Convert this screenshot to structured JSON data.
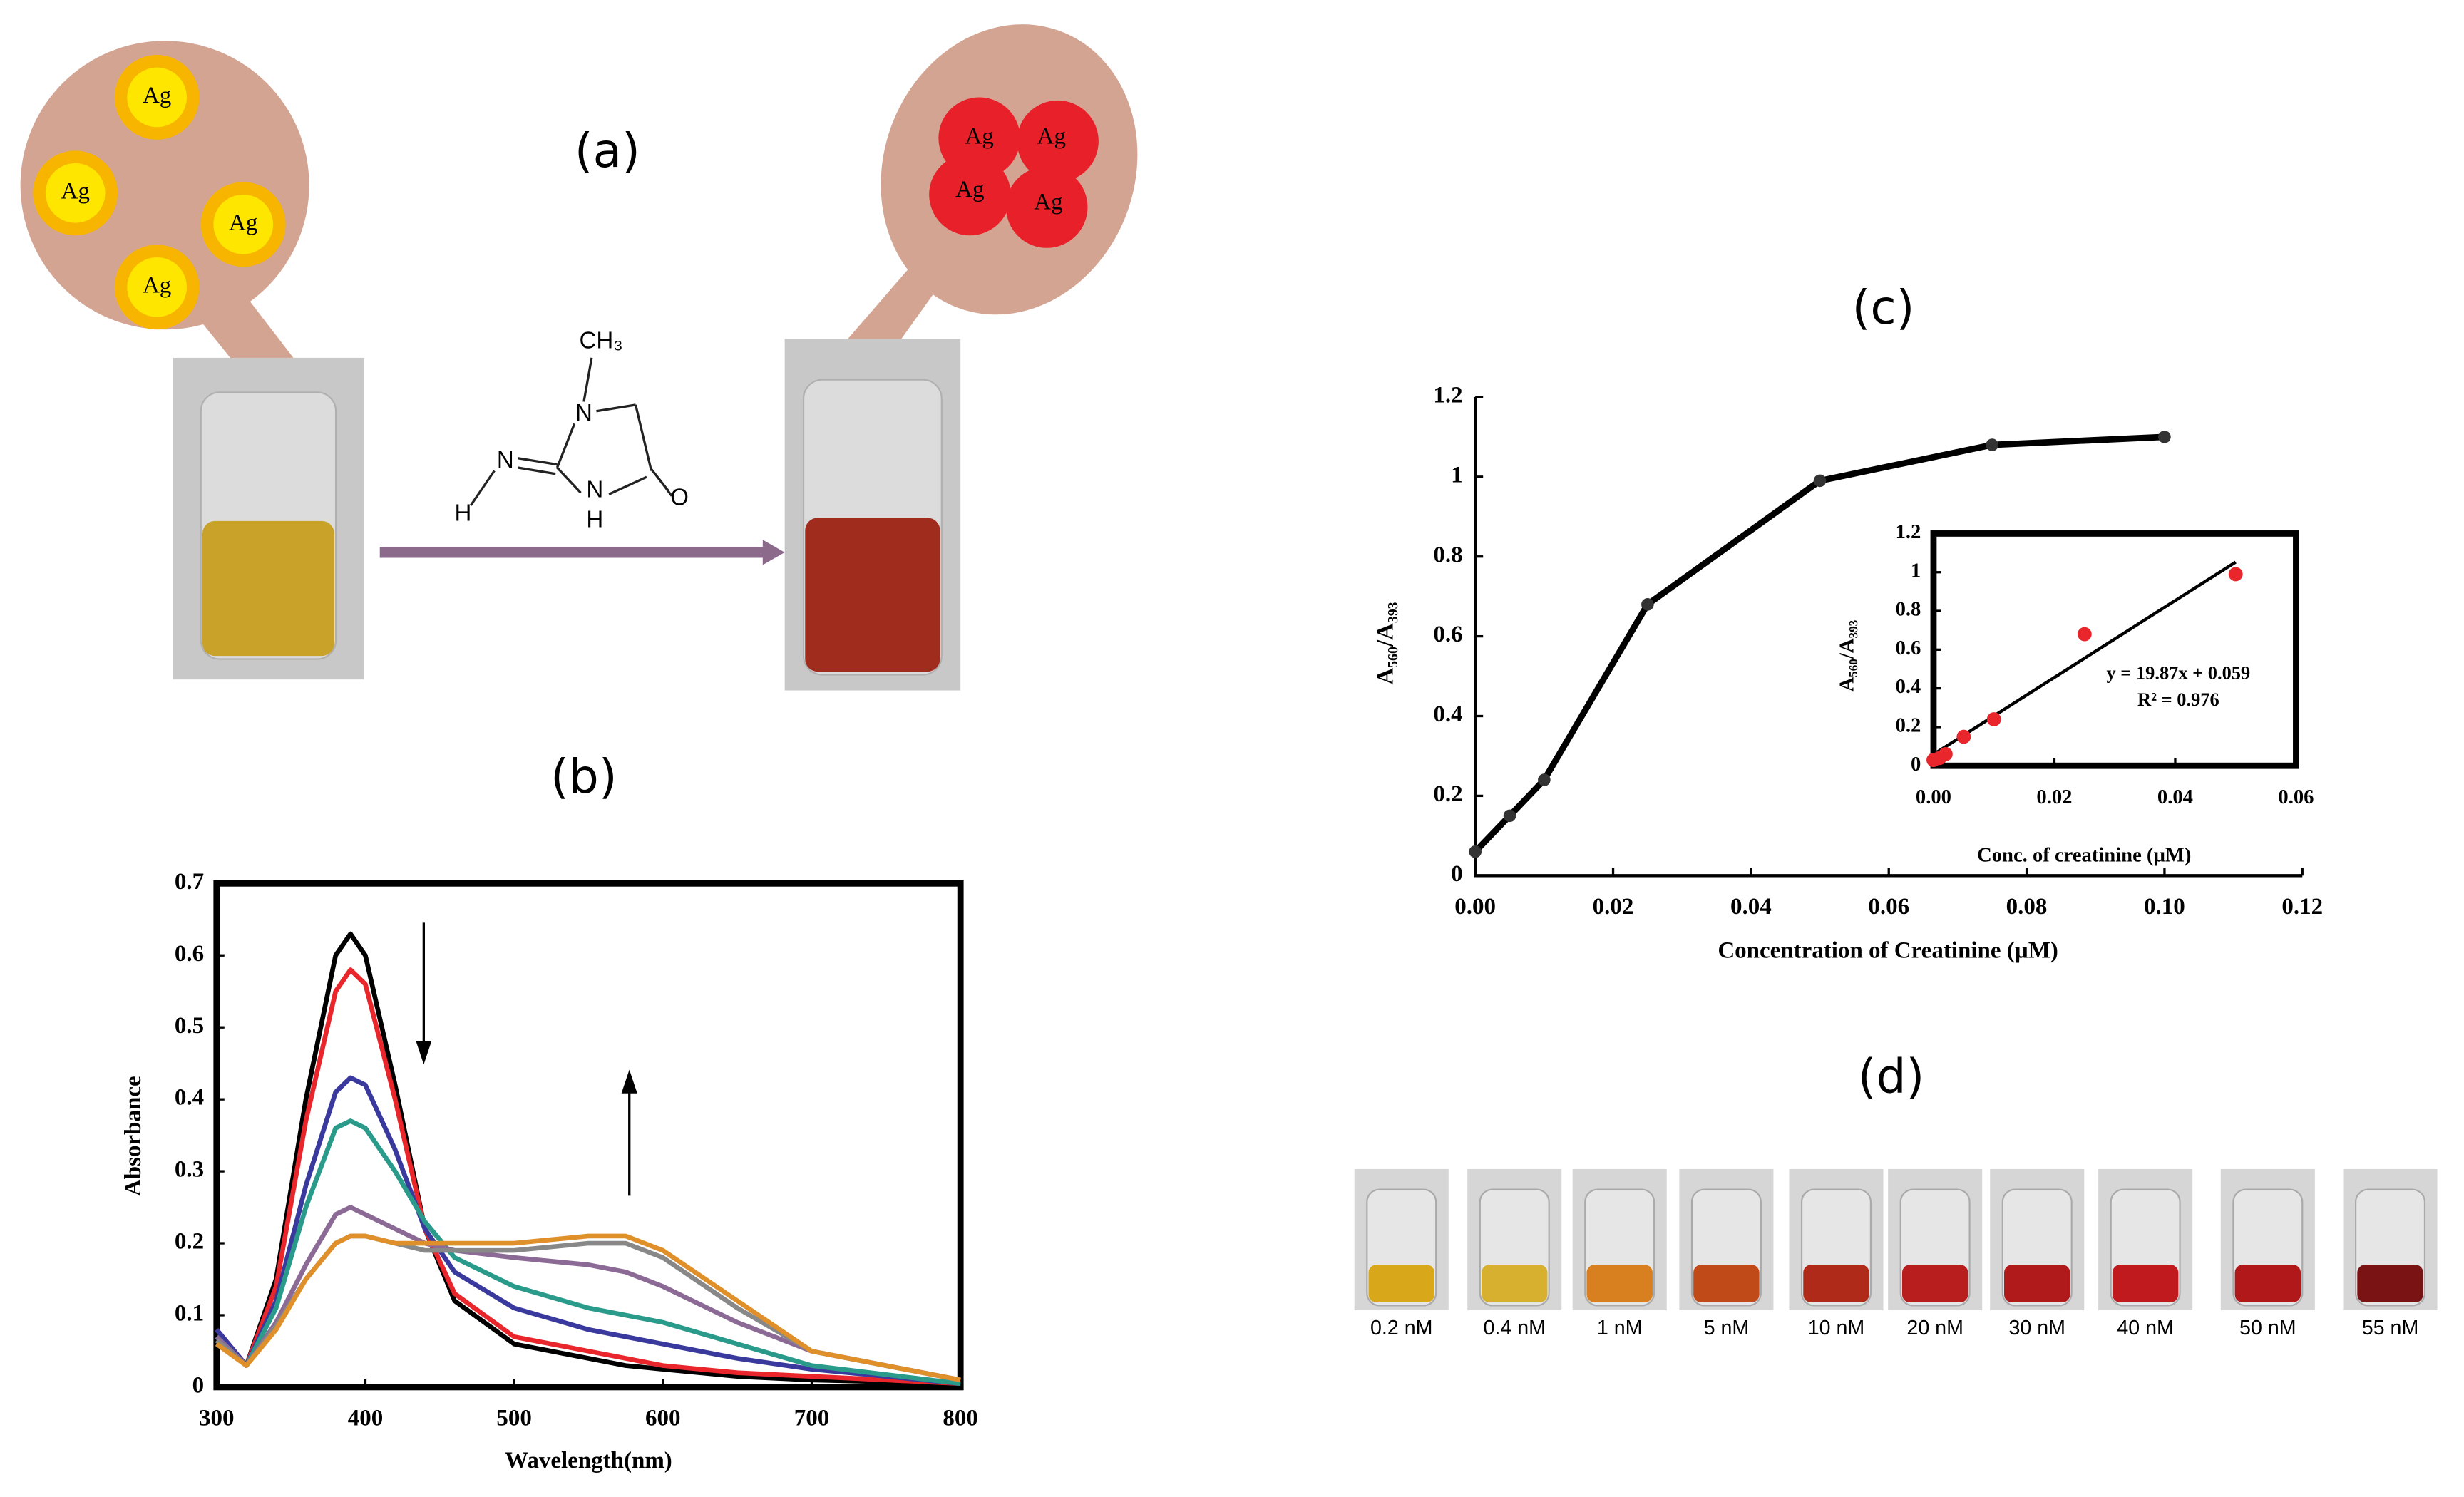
{
  "diagram": {
    "label": "(a)",
    "before": [
      "Ag",
      "Ag",
      "Ag",
      "Ag"
    ],
    "after": [
      "Ag",
      "Ag",
      "Ag",
      "Ag"
    ],
    "molecule": [
      "CH₃",
      "N",
      "N",
      "H",
      "N",
      "H",
      "O"
    ]
  },
  "chart_data": [
    {
      "type": "line",
      "title": "(b)",
      "x_label": "Wavelength(nm)",
      "y_label": "Absorbance",
      "x": [
        300,
        320,
        340,
        360,
        380,
        390,
        400,
        420,
        440,
        460,
        500,
        550,
        575,
        600,
        650,
        700,
        800
      ],
      "series": [
        {
          "color": "#000000",
          "values": [
            0.08,
            0.03,
            0.15,
            0.4,
            0.6,
            0.63,
            0.6,
            0.42,
            0.22,
            0.12,
            0.06,
            0.04,
            0.03,
            0.025,
            0.015,
            0.01,
            0.005
          ]
        },
        {
          "color": "#e8262b",
          "values": [
            0.08,
            0.03,
            0.14,
            0.37,
            0.55,
            0.58,
            0.56,
            0.4,
            0.22,
            0.13,
            0.07,
            0.05,
            0.04,
            0.03,
            0.02,
            0.015,
            0.005
          ]
        },
        {
          "color": "#3a3a9e",
          "values": [
            0.08,
            0.03,
            0.12,
            0.28,
            0.41,
            0.43,
            0.42,
            0.33,
            0.22,
            0.16,
            0.11,
            0.08,
            0.07,
            0.06,
            0.04,
            0.025,
            0.005
          ]
        },
        {
          "color": "#2a9a8a",
          "values": [
            0.07,
            0.03,
            0.11,
            0.25,
            0.36,
            0.37,
            0.36,
            0.3,
            0.23,
            0.18,
            0.14,
            0.11,
            0.1,
            0.09,
            0.06,
            0.03,
            0.005
          ]
        },
        {
          "color": "#8c6a96",
          "values": [
            0.07,
            0.03,
            0.09,
            0.17,
            0.24,
            0.25,
            0.24,
            0.22,
            0.2,
            0.19,
            0.18,
            0.17,
            0.16,
            0.14,
            0.09,
            0.05,
            0.01
          ]
        },
        {
          "color": "#888888",
          "values": [
            0.065,
            0.03,
            0.085,
            0.15,
            0.2,
            0.21,
            0.21,
            0.2,
            0.19,
            0.19,
            0.19,
            0.2,
            0.2,
            0.18,
            0.11,
            0.05,
            0.01
          ]
        },
        {
          "color": "#e0902a",
          "values": [
            0.06,
            0.03,
            0.08,
            0.15,
            0.2,
            0.21,
            0.21,
            0.2,
            0.2,
            0.2,
            0.2,
            0.21,
            0.21,
            0.19,
            0.12,
            0.05,
            0.01
          ]
        }
      ],
      "xlim": [
        300,
        800
      ],
      "xticks": [
        300,
        400,
        500,
        600,
        700,
        800
      ],
      "ylim": [
        0,
        0.7
      ],
      "yticks": [
        0,
        0.1,
        0.2,
        0.3,
        0.4,
        0.5,
        0.6,
        0.7
      ]
    },
    {
      "type": "line",
      "title": "(c)",
      "x_label": "Concentration of Creatinine (µM)",
      "y_label": "A₅₆₀/A₃₉₃",
      "x": [
        0,
        0.005,
        0.01,
        0.025,
        0.05,
        0.075,
        0.1
      ],
      "series": [
        {
          "color": "#000000",
          "values": [
            0.06,
            0.15,
            0.24,
            0.68,
            0.99,
            1.08,
            1.1
          ]
        }
      ],
      "xlim": [
        0,
        0.12
      ],
      "xticks": [
        {
          "value": 0,
          "label": "0.00"
        },
        {
          "value": 0.02,
          "label": "0.02"
        },
        {
          "value": 0.04,
          "label": "0.04"
        },
        {
          "value": 0.06,
          "label": "0.06"
        },
        {
          "value": 0.08,
          "label": "0.08"
        },
        {
          "value": 0.1,
          "label": "0.10"
        },
        {
          "value": 0.12,
          "label": "0.12"
        }
      ],
      "ylim": [
        0,
        1.2
      ],
      "yticks": [
        0,
        0.2,
        0.4,
        0.6,
        0.8,
        1,
        1.2
      ]
    },
    {
      "type": "scatter",
      "x_label": "Conc. of creatinine (µM)",
      "y_label": "A₅₆₀/A₃₉₃",
      "x": [
        0,
        0.001,
        0.002,
        0.005,
        0.01,
        0.025,
        0.05
      ],
      "series": [
        {
          "color": "#e8262b",
          "values": [
            0.03,
            0.04,
            0.06,
            0.15,
            0.24,
            0.68,
            0.99
          ]
        }
      ],
      "trendline": {
        "label": "y = 19.87x + 0.059",
        "slope": 19.87,
        "intercept": 0.059,
        "r2_label": "R² = 0.976"
      },
      "xlim": [
        0,
        0.06
      ],
      "xticks": [
        {
          "value": 0,
          "label": "0.00"
        },
        {
          "value": 0.02,
          "label": "0.02"
        },
        {
          "value": 0.04,
          "label": "0.04"
        },
        {
          "value": 0.06,
          "label": "0.06"
        }
      ],
      "ylim": [
        0,
        1.2
      ],
      "yticks": [
        0,
        0.2,
        0.4,
        0.6,
        0.8,
        1,
        1.2
      ]
    }
  ],
  "vials": {
    "label": "(d)",
    "labels": [
      "0.2 nM",
      "0.4 nM",
      "1 nM",
      "5 nM",
      "10 nM",
      "20 nM",
      "30 nM",
      "40 nM",
      "50 nM",
      "55 nM"
    ]
  }
}
